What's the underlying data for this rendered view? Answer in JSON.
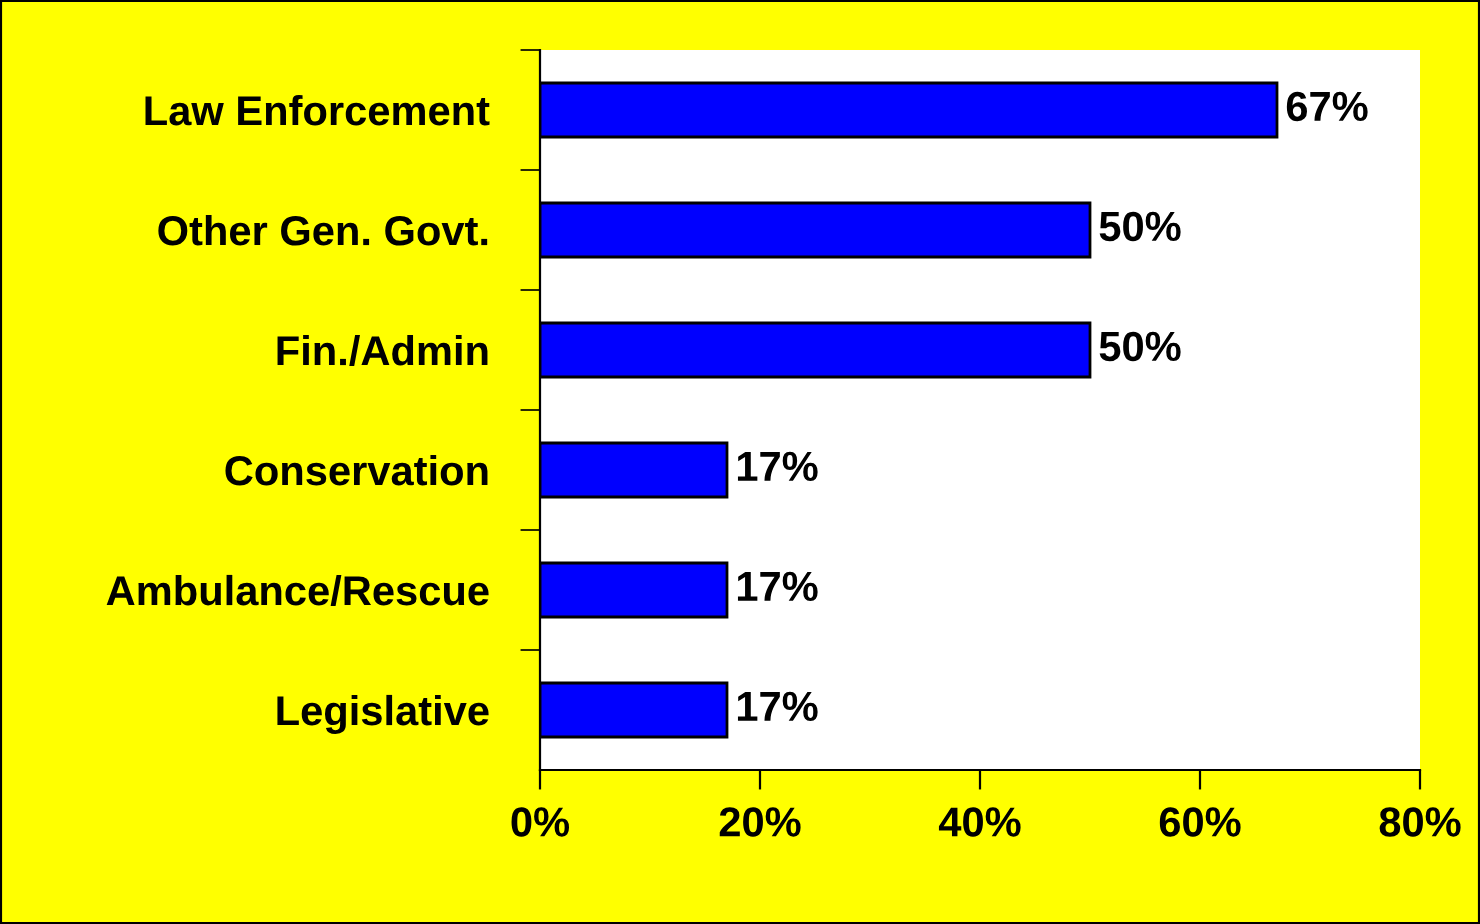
{
  "chart_data": {
    "type": "bar",
    "orientation": "horizontal",
    "categories": [
      "Law Enforcement",
      "Other Gen. Govt.",
      "Fin./Admin",
      "Conservation",
      "Ambulance/Rescue",
      "Legislative"
    ],
    "values": [
      67,
      50,
      50,
      17,
      17,
      17
    ],
    "value_labels": [
      "67%",
      "50%",
      "50%",
      "17%",
      "17%",
      "17%"
    ],
    "color": "#0000ff",
    "xlim": [
      0,
      80
    ],
    "xticks": [
      {
        "value": 0,
        "label": "0%"
      },
      {
        "value": 20,
        "label": "20%"
      },
      {
        "value": 40,
        "label": "40%"
      },
      {
        "value": 60,
        "label": "60%"
      },
      {
        "value": 80,
        "label": "80%"
      }
    ],
    "grid": false,
    "legend": false
  }
}
